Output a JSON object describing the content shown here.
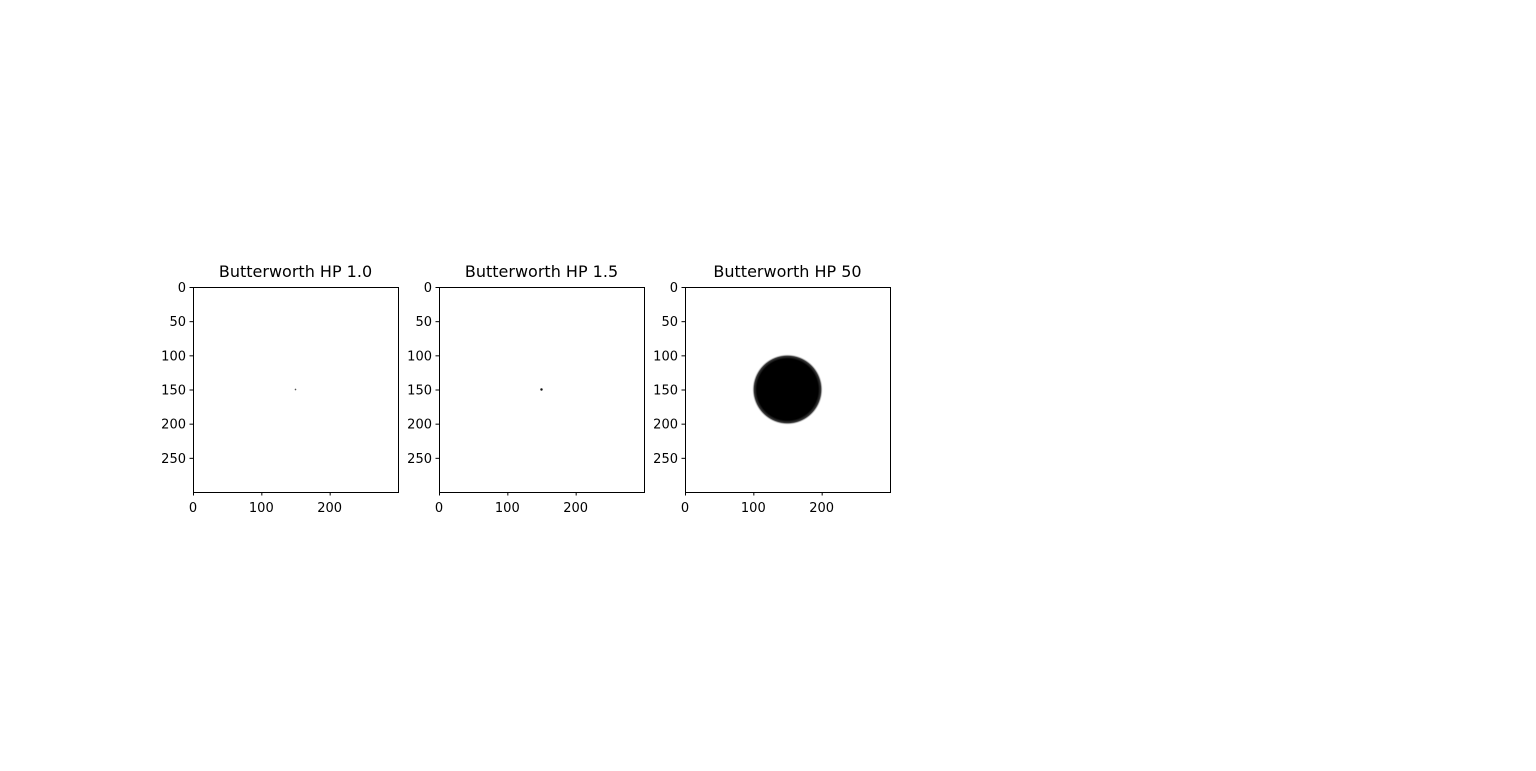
{
  "chart_data": [
    {
      "type": "heatmap",
      "title": "Butterworth HP 1.0",
      "image_size": [
        300,
        300
      ],
      "cutoff_radius": 1.0,
      "center": [
        150,
        150
      ],
      "colormap": "gray",
      "xticks": [
        0,
        100,
        200
      ],
      "yticks": [
        0,
        50,
        100,
        150,
        200,
        250
      ],
      "xlim": [
        0,
        300
      ],
      "ylim": [
        300,
        0
      ]
    },
    {
      "type": "heatmap",
      "title": "Butterworth HP 1.5",
      "image_size": [
        300,
        300
      ],
      "cutoff_radius": 1.5,
      "center": [
        150,
        150
      ],
      "colormap": "gray",
      "xticks": [
        0,
        100,
        200
      ],
      "yticks": [
        0,
        50,
        100,
        150,
        200,
        250
      ],
      "xlim": [
        0,
        300
      ],
      "ylim": [
        300,
        0
      ]
    },
    {
      "type": "heatmap",
      "title": "Butterworth HP 50",
      "image_size": [
        300,
        300
      ],
      "cutoff_radius": 50,
      "center": [
        150,
        150
      ],
      "colormap": "gray",
      "xticks": [
        0,
        100,
        200
      ],
      "yticks": [
        0,
        50,
        100,
        150,
        200,
        250
      ],
      "xlim": [
        0,
        300
      ],
      "ylim": [
        300,
        0
      ]
    }
  ]
}
